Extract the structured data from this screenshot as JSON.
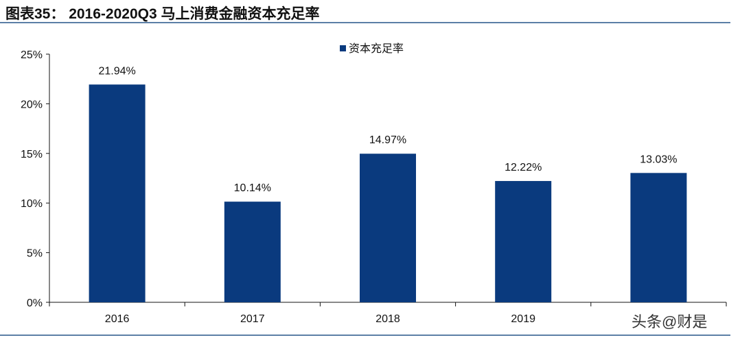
{
  "chart_data": {
    "type": "bar",
    "title": "图表35： 2016-2020Q3 马上消费金融资本充足率",
    "categories": [
      "2016",
      "2017",
      "2018",
      "2019",
      ""
    ],
    "series": [
      {
        "name": "资本充足率",
        "values": [
          21.94,
          10.14,
          14.97,
          12.22,
          13.03
        ],
        "color": "#0a3a7e"
      }
    ],
    "data_labels": [
      "21.94%",
      "10.14%",
      "14.97%",
      "12.22%",
      "13.03%"
    ],
    "yticks": [
      "0%",
      "5%",
      "10%",
      "15%",
      "20%",
      "25%"
    ],
    "ylim": [
      0,
      25
    ],
    "xlabel": "",
    "ylabel": "",
    "grid": false,
    "legend": "top-center"
  },
  "watermark": "头条@财是"
}
